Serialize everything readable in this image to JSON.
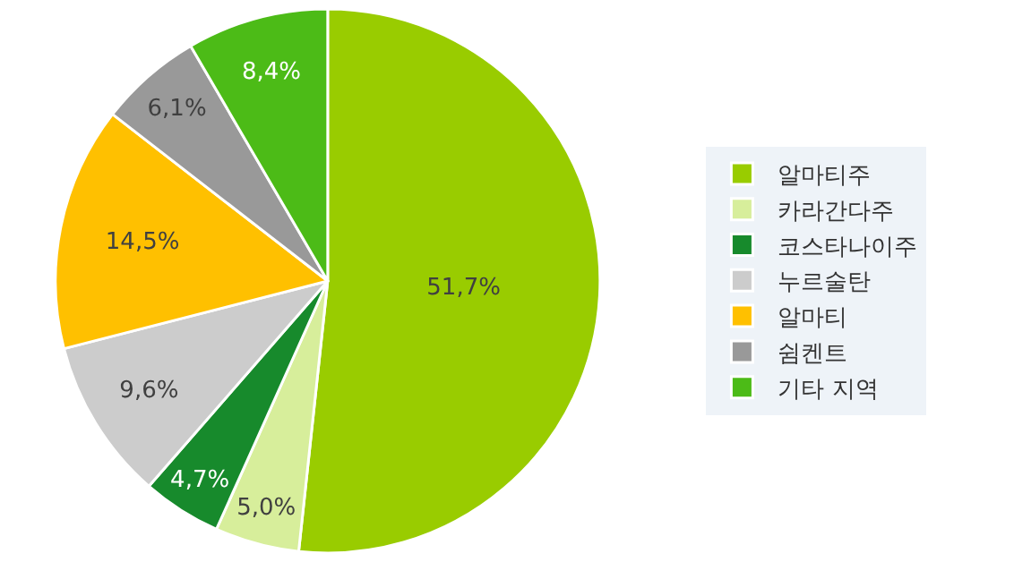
{
  "chart_data": {
    "type": "pie",
    "categories": [
      "알마티주",
      "카라간다주",
      "코스타나이주",
      "누르술탄",
      "알마티",
      "쉼켄트",
      "기타 지역"
    ],
    "values": [
      51.7,
      5.0,
      4.7,
      9.6,
      14.5,
      6.1,
      8.4
    ],
    "value_labels": [
      "51,7%",
      "5,0%",
      "4,7%",
      "9,6%",
      "14,5%",
      "6,1%",
      "8,4%"
    ],
    "colors": [
      "#99cc00",
      "#d7ee9b",
      "#178a2c",
      "#cccccc",
      "#ffc000",
      "#999999",
      "#4cbb17"
    ],
    "legend": "right"
  }
}
